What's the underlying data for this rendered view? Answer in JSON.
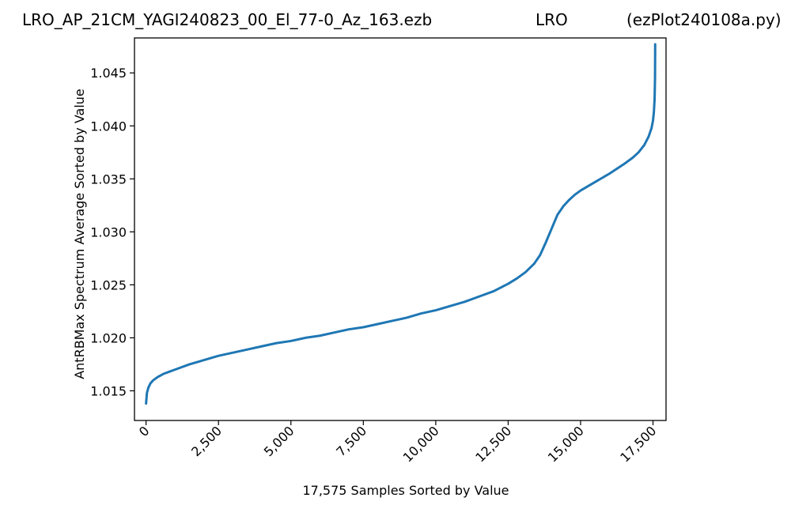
{
  "header": {
    "filename": "LRO_AP_21CM_YAGI240823_00_El_77-0_Az_163.ezb",
    "site": "LRO",
    "script": "(ezPlot240108a.py)"
  },
  "chart_data": {
    "type": "line",
    "xlabel": "17,575 Samples Sorted by Value",
    "ylabel": "AntRBMax Spectrum Average Sorted by Value",
    "xlim": [
      -400,
      17950
    ],
    "ylim": [
      1.0122,
      1.0483
    ],
    "grid": false,
    "x_ticks": [
      0,
      2500,
      5000,
      7500,
      10000,
      12500,
      15000,
      17500
    ],
    "x_tick_labels": [
      "0",
      "2,500",
      "5,000",
      "7,500",
      "10,000",
      "12,500",
      "15,000",
      "17,500"
    ],
    "y_ticks": [
      1.015,
      1.02,
      1.025,
      1.03,
      1.035,
      1.04,
      1.045
    ],
    "y_tick_labels": [
      "1.015",
      "1.020",
      "1.025",
      "1.030",
      "1.035",
      "1.040",
      "1.045"
    ],
    "color": "#1f77b4",
    "series": [
      {
        "x": [
          0,
          30,
          80,
          150,
          250,
          400,
          600,
          800,
          1000,
          1500,
          2000,
          2500,
          3000,
          3500,
          4000,
          4500,
          5000,
          5500,
          6000,
          6500,
          7000,
          7500,
          8000,
          8500,
          9000,
          9500,
          10000,
          10500,
          11000,
          11500,
          12000,
          12500,
          12800,
          13100,
          13400,
          13600,
          13800,
          14000,
          14200,
          14400,
          14600,
          14800,
          15000,
          15500,
          16000,
          16500,
          16800,
          17000,
          17200,
          17350,
          17450,
          17500,
          17530,
          17555,
          17570,
          17575
        ],
        "y": [
          1.0138,
          1.0148,
          1.0153,
          1.0157,
          1.016,
          1.0163,
          1.0166,
          1.0168,
          1.017,
          1.0175,
          1.0179,
          1.0183,
          1.0186,
          1.0189,
          1.0192,
          1.0195,
          1.0197,
          1.02,
          1.0202,
          1.0205,
          1.0208,
          1.021,
          1.0213,
          1.0216,
          1.0219,
          1.0223,
          1.0226,
          1.023,
          1.0234,
          1.0239,
          1.0244,
          1.0251,
          1.0256,
          1.0262,
          1.027,
          1.0278,
          1.029,
          1.0303,
          1.0316,
          1.0324,
          1.033,
          1.0335,
          1.0339,
          1.0347,
          1.0355,
          1.0364,
          1.037,
          1.0375,
          1.0382,
          1.039,
          1.0398,
          1.0405,
          1.0413,
          1.0425,
          1.0445,
          1.0477
        ]
      }
    ]
  }
}
